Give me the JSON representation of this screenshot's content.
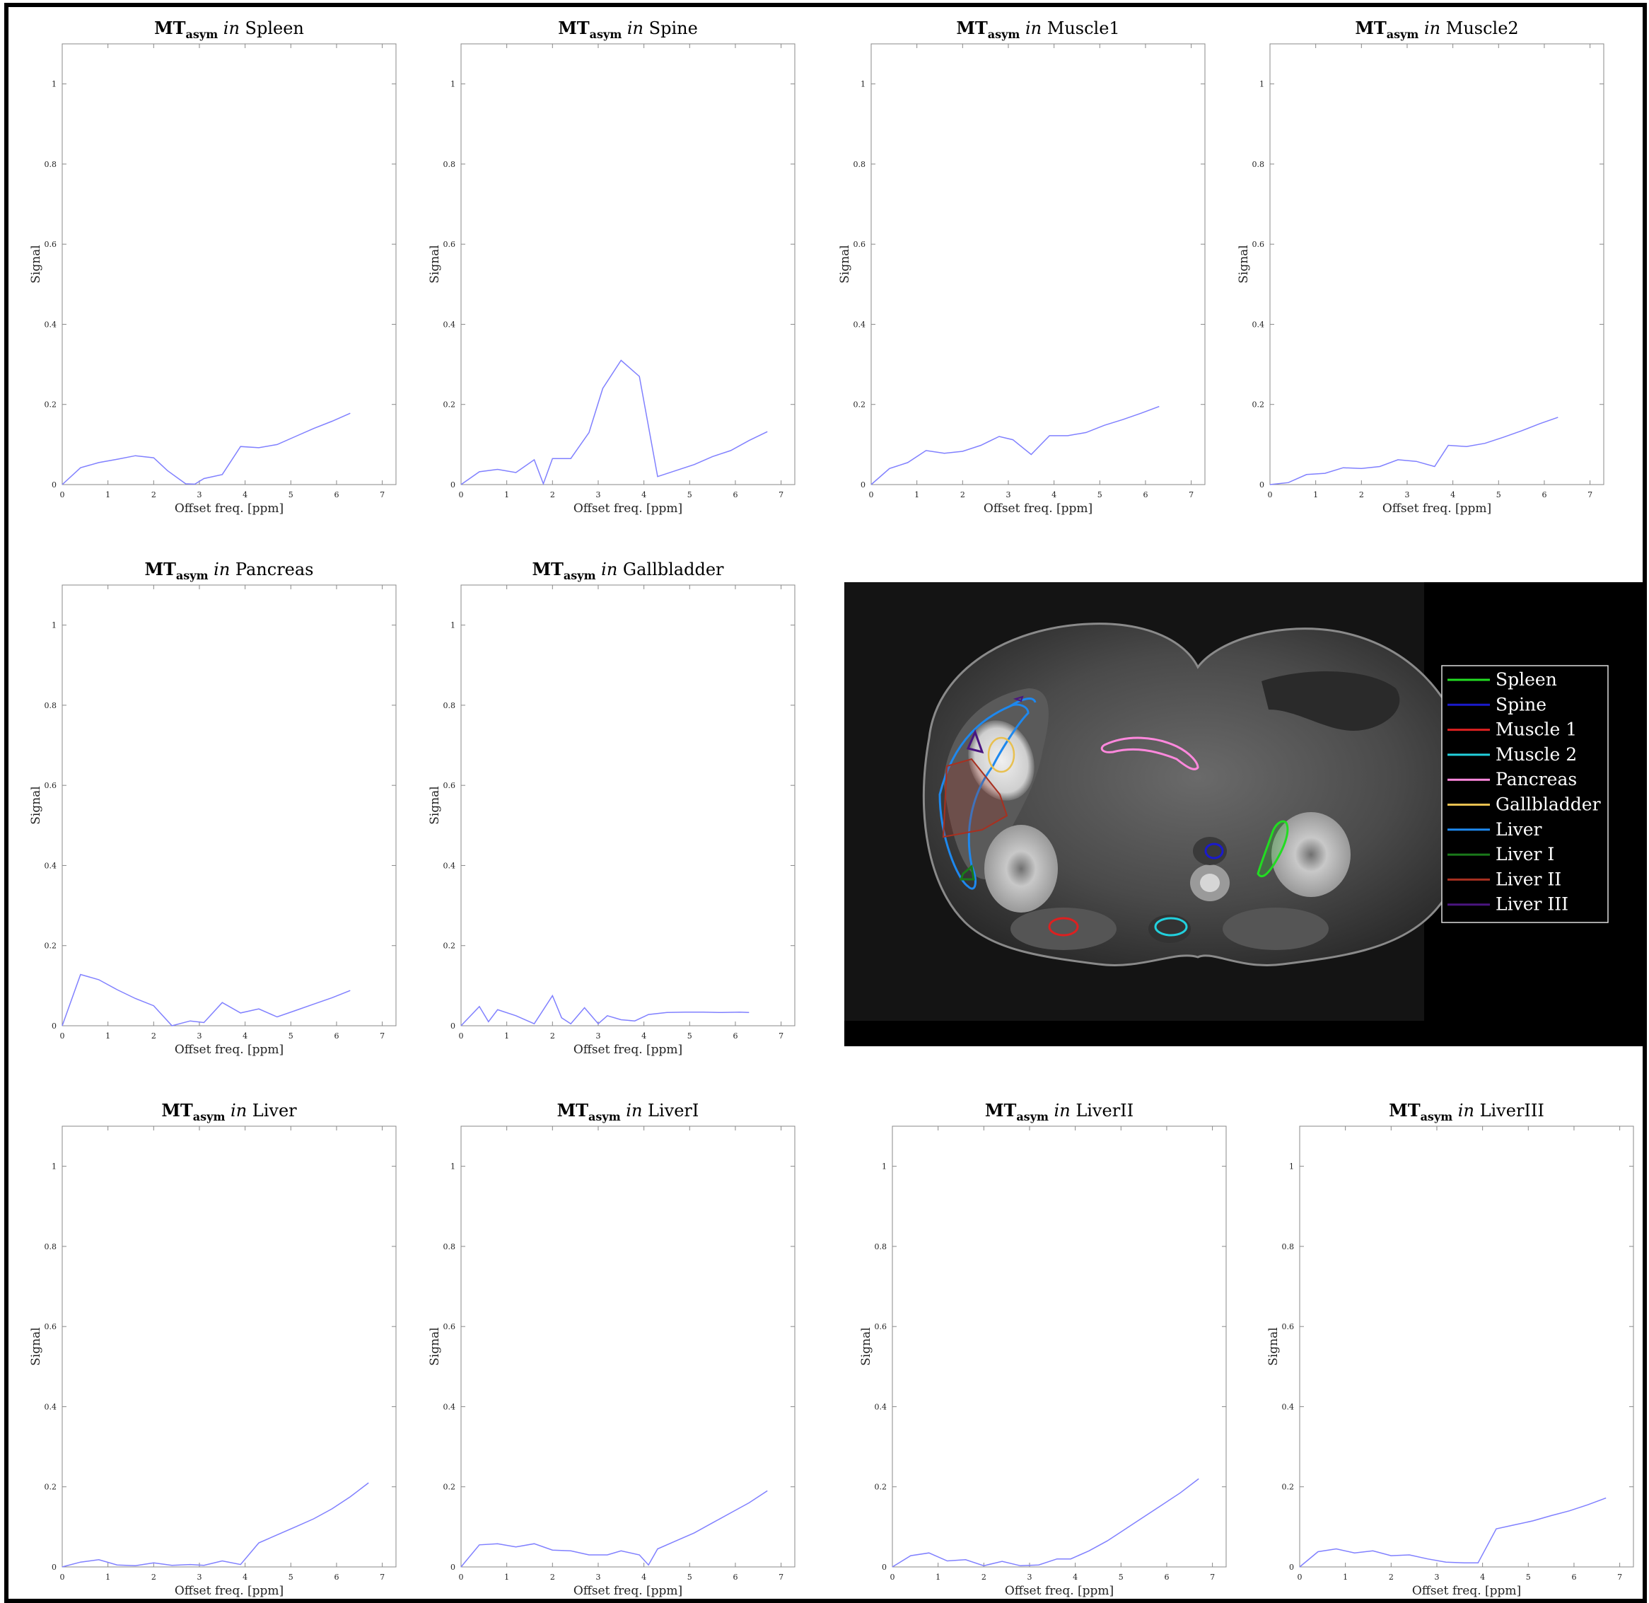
{
  "chart_data": [
    {
      "type": "line",
      "title_main": "MT",
      "title_sub": "asym",
      "title_in": "in",
      "title_region": "Spleen",
      "xlabel": "Offset freq.  [ppm]",
      "ylabel": "Signal",
      "xlim": [
        0,
        7.3
      ],
      "ylim": [
        0,
        1.1
      ],
      "xticks": [
        0,
        1,
        2,
        3,
        4,
        5,
        6,
        7
      ],
      "yticks": [
        0,
        0.2,
        0.4,
        0.6,
        0.8,
        1
      ],
      "series": [
        {
          "x": [
            0,
            0.4,
            0.8,
            1.2,
            1.6,
            2,
            2.3,
            2.7,
            2.9,
            3.1,
            3.5,
            3.9,
            4.3,
            4.7,
            5.1,
            5.5,
            5.9,
            6.3
          ],
          "y": [
            0,
            0.042,
            0.055,
            0.063,
            0.072,
            0.067,
            0.035,
            0.002,
            0.001,
            0.015,
            0.025,
            0.095,
            0.092,
            0.1,
            0.12,
            0.14,
            0.158,
            0.178
          ]
        }
      ]
    },
    {
      "type": "line",
      "title_main": "MT",
      "title_sub": "asym",
      "title_in": "in",
      "title_region": "Spine",
      "xlabel": "Offset freq.  [ppm]",
      "ylabel": "Signal",
      "xlim": [
        0,
        7.3
      ],
      "ylim": [
        0,
        1.1
      ],
      "xticks": [
        0,
        1,
        2,
        3,
        4,
        5,
        6,
        7
      ],
      "yticks": [
        0,
        0.2,
        0.4,
        0.6,
        0.8,
        1
      ],
      "series": [
        {
          "x": [
            0,
            0.4,
            0.8,
            1.2,
            1.6,
            1.8,
            2,
            2.4,
            2.8,
            3.1,
            3.5,
            3.9,
            4.3,
            4.7,
            5.1,
            5.5,
            5.9,
            6.3,
            6.7
          ],
          "y": [
            0,
            0.032,
            0.038,
            0.03,
            0.062,
            0.002,
            0.065,
            0.065,
            0.13,
            0.24,
            0.31,
            0.27,
            0.02,
            0.035,
            0.05,
            0.07,
            0.085,
            0.11,
            0.132
          ]
        }
      ]
    },
    {
      "type": "line",
      "title_main": "MT",
      "title_sub": "asym",
      "title_in": "in",
      "title_region": "Muscle1",
      "xlabel": "Offset freq.  [ppm]",
      "ylabel": "Signal",
      "xlim": [
        0,
        7.3
      ],
      "ylim": [
        0,
        1.1
      ],
      "xticks": [
        0,
        1,
        2,
        3,
        4,
        5,
        6,
        7
      ],
      "yticks": [
        0,
        0.2,
        0.4,
        0.6,
        0.8,
        1
      ],
      "series": [
        {
          "x": [
            0,
            0.4,
            0.8,
            1.2,
            1.6,
            2,
            2.4,
            2.8,
            3.1,
            3.5,
            3.9,
            4.3,
            4.7,
            5.1,
            5.5,
            5.9,
            6.3
          ],
          "y": [
            0,
            0.04,
            0.055,
            0.085,
            0.078,
            0.083,
            0.098,
            0.12,
            0.112,
            0.075,
            0.122,
            0.122,
            0.13,
            0.148,
            0.162,
            0.178,
            0.195
          ]
        }
      ]
    },
    {
      "type": "line",
      "title_main": "MT",
      "title_sub": "asym",
      "title_in": "in",
      "title_region": "Muscle2",
      "xlabel": "Offset freq.  [ppm]",
      "ylabel": "Signal",
      "xlim": [
        0,
        7.3
      ],
      "ylim": [
        0,
        1.1
      ],
      "xticks": [
        0,
        1,
        2,
        3,
        4,
        5,
        6,
        7
      ],
      "yticks": [
        0,
        0.2,
        0.4,
        0.6,
        0.8,
        1
      ],
      "series": [
        {
          "x": [
            0,
            0.4,
            0.8,
            1.2,
            1.6,
            2,
            2.4,
            2.8,
            3.2,
            3.6,
            3.9,
            4.3,
            4.7,
            5.1,
            5.5,
            5.9,
            6.3
          ],
          "y": [
            0,
            0.005,
            0.025,
            0.028,
            0.042,
            0.04,
            0.045,
            0.062,
            0.058,
            0.045,
            0.098,
            0.095,
            0.103,
            0.118,
            0.134,
            0.152,
            0.168
          ]
        }
      ]
    },
    {
      "type": "line",
      "title_main": "MT",
      "title_sub": "asym",
      "title_in": "in",
      "title_region": "Pancreas",
      "xlabel": "Offset freq.  [ppm]",
      "ylabel": "Signal",
      "xlim": [
        0,
        7.3
      ],
      "ylim": [
        0,
        1.1
      ],
      "xticks": [
        0,
        1,
        2,
        3,
        4,
        5,
        6,
        7
      ],
      "yticks": [
        0,
        0.2,
        0.4,
        0.6,
        0.8,
        1
      ],
      "series": [
        {
          "x": [
            0,
            0.4,
            0.8,
            1.2,
            1.6,
            2,
            2.4,
            2.8,
            3.1,
            3.5,
            3.9,
            4.3,
            4.7,
            5.1,
            5.5,
            5.9,
            6.3
          ],
          "y": [
            0,
            0.128,
            0.115,
            0.09,
            0.068,
            0.05,
            0,
            0.012,
            0.008,
            0.058,
            0.032,
            0.042,
            0.022,
            0.038,
            0.054,
            0.07,
            0.088
          ]
        }
      ]
    },
    {
      "type": "line",
      "title_main": "MT",
      "title_sub": "asym",
      "title_in": "in",
      "title_region": "Gallbladder",
      "xlabel": "Offset freq.  [ppm]",
      "ylabel": "Signal",
      "xlim": [
        0,
        7.3
      ],
      "ylim": [
        0,
        1.1
      ],
      "xticks": [
        0,
        1,
        2,
        3,
        4,
        5,
        6,
        7
      ],
      "yticks": [
        0,
        0.2,
        0.4,
        0.6,
        0.8,
        1
      ],
      "series": [
        {
          "x": [
            0,
            0.4,
            0.6,
            0.8,
            1.2,
            1.6,
            2,
            2.2,
            2.4,
            2.7,
            3,
            3.2,
            3.5,
            3.8,
            4.1,
            4.5,
            4.9,
            5.3,
            5.7,
            6.1,
            6.3
          ],
          "y": [
            0,
            0.048,
            0.01,
            0.04,
            0.025,
            0.005,
            0.075,
            0.02,
            0.005,
            0.045,
            0.005,
            0.025,
            0.015,
            0.012,
            0.028,
            0.033,
            0.034,
            0.034,
            0.033,
            0.034,
            0.033
          ]
        }
      ]
    },
    {
      "type": "line",
      "title_main": "MT",
      "title_sub": "asym",
      "title_in": "in",
      "title_region": "Liver",
      "xlabel": "Offset freq.  [ppm]",
      "ylabel": "Signal",
      "xlim": [
        0,
        7.3
      ],
      "ylim": [
        0,
        1.1
      ],
      "xticks": [
        0,
        1,
        2,
        3,
        4,
        5,
        6,
        7
      ],
      "yticks": [
        0,
        0.2,
        0.4,
        0.6,
        0.8,
        1
      ],
      "series": [
        {
          "x": [
            0,
            0.4,
            0.8,
            1.2,
            1.6,
            2,
            2.4,
            2.8,
            3.1,
            3.5,
            3.9,
            4.3,
            4.7,
            5.1,
            5.5,
            5.9,
            6.3,
            6.7
          ],
          "y": [
            0,
            0.012,
            0.018,
            0.005,
            0.003,
            0.01,
            0.004,
            0.006,
            0.004,
            0.015,
            0.006,
            0.06,
            0.08,
            0.1,
            0.12,
            0.145,
            0.175,
            0.21
          ]
        }
      ]
    },
    {
      "type": "line",
      "title_main": "MT",
      "title_sub": "asym",
      "title_in": "in",
      "title_region": "LiverI",
      "xlabel": "Offset freq.  [ppm]",
      "ylabel": "Signal",
      "xlim": [
        0,
        7.3
      ],
      "ylim": [
        0,
        1.1
      ],
      "xticks": [
        0,
        1,
        2,
        3,
        4,
        5,
        6,
        7
      ],
      "yticks": [
        0,
        0.2,
        0.4,
        0.6,
        0.8,
        1
      ],
      "series": [
        {
          "x": [
            0,
            0.4,
            0.8,
            1.2,
            1.6,
            2,
            2.4,
            2.8,
            3.2,
            3.5,
            3.9,
            4.1,
            4.3,
            4.7,
            5.1,
            5.5,
            5.9,
            6.3,
            6.7
          ],
          "y": [
            0,
            0.055,
            0.058,
            0.05,
            0.058,
            0.042,
            0.04,
            0.03,
            0.03,
            0.04,
            0.03,
            0.005,
            0.045,
            0.065,
            0.085,
            0.11,
            0.135,
            0.16,
            0.19
          ]
        }
      ]
    },
    {
      "type": "line",
      "title_main": "MT",
      "title_sub": "asym",
      "title_in": "in",
      "title_region": "LiverII",
      "xlabel": "Offset freq.  [ppm]",
      "ylabel": "Signal",
      "xlim": [
        0,
        7.3
      ],
      "ylim": [
        0,
        1.1
      ],
      "xticks": [
        0,
        1,
        2,
        3,
        4,
        5,
        6,
        7
      ],
      "yticks": [
        0,
        0.2,
        0.4,
        0.6,
        0.8,
        1
      ],
      "series": [
        {
          "x": [
            0,
            0.4,
            0.8,
            1.2,
            1.6,
            2,
            2.4,
            2.8,
            3.2,
            3.6,
            3.9,
            4.3,
            4.7,
            5.1,
            5.5,
            5.9,
            6.3,
            6.7
          ],
          "y": [
            0,
            0.028,
            0.035,
            0.015,
            0.018,
            0.003,
            0.014,
            0.003,
            0.005,
            0.02,
            0.02,
            0.04,
            0.065,
            0.095,
            0.125,
            0.155,
            0.185,
            0.22
          ]
        }
      ]
    },
    {
      "type": "line",
      "title_main": "MT",
      "title_sub": "asym",
      "title_in": "in",
      "title_region": "LiverIII",
      "xlabel": "Offset freq.  [ppm]",
      "ylabel": "Signal",
      "xlim": [
        0,
        7.3
      ],
      "ylim": [
        0,
        1.1
      ],
      "xticks": [
        0,
        1,
        2,
        3,
        4,
        5,
        6,
        7
      ],
      "yticks": [
        0,
        0.2,
        0.4,
        0.6,
        0.8,
        1
      ],
      "series": [
        {
          "x": [
            0,
            0.4,
            0.8,
            1.2,
            1.6,
            2,
            2.4,
            2.8,
            3.2,
            3.6,
            3.9,
            4.3,
            4.7,
            5.1,
            5.5,
            5.9,
            6.3,
            6.7
          ],
          "y": [
            0,
            0.038,
            0.045,
            0.035,
            0.04,
            0.028,
            0.03,
            0.02,
            0.012,
            0.01,
            0.01,
            0.095,
            0.105,
            0.115,
            0.128,
            0.14,
            0.155,
            0.172
          ]
        }
      ]
    }
  ],
  "colors": {
    "line": "#8080ff",
    "axis": "#888888",
    "frame": "#000000"
  },
  "legend": {
    "title": "",
    "items": [
      {
        "label": "Spleen",
        "color": "#22dd22"
      },
      {
        "label": "Spine",
        "color": "#1a1acc"
      },
      {
        "label": "Muscle 1",
        "color": "#dd2020"
      },
      {
        "label": "Muscle 2",
        "color": "#22d0dd"
      },
      {
        "label": "Pancreas",
        "color": "#ff88dd"
      },
      {
        "label": "Gallbladder",
        "color": "#e8c050"
      },
      {
        "label": "Liver",
        "color": "#1e88ee"
      },
      {
        "label": "Liver I",
        "color": "#1a7a1a"
      },
      {
        "label": "Liver II",
        "color": "#a83020"
      },
      {
        "label": "Liver III",
        "color": "#4a1580"
      }
    ]
  },
  "mri_image": {
    "description_icon": "mri-axial-slice-icon"
  }
}
